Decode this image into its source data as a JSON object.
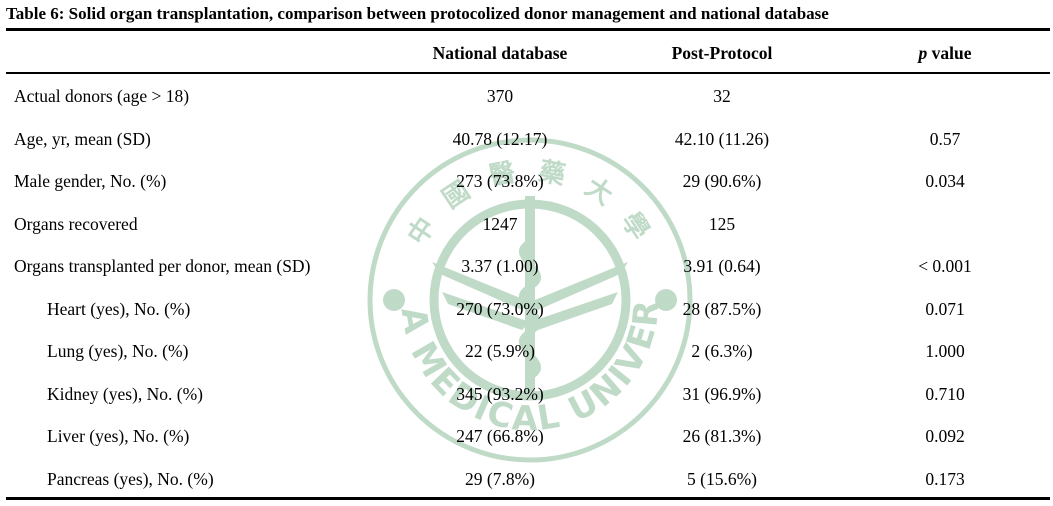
{
  "caption": "Table 6: Solid organ transplantation, comparison between protocolized donor management and national database",
  "columns": {
    "national": "National database",
    "post": "Post-Protocol",
    "p_italic": "p",
    "p_rest": " value"
  },
  "watermark": {
    "top_text": "中 國 醫 藥 大 學",
    "bottom_text": "CHINA MEDICAL UNIVERSITY"
  },
  "rows": [
    {
      "label": "Actual donors (age > 18)",
      "national": "370",
      "post": "32",
      "p": ""
    },
    {
      "label": "Age, yr, mean (SD)",
      "national": "40.78 (12.17)",
      "post": "42.10 (11.26)",
      "p": "0.57"
    },
    {
      "label": "Male gender, No. (%)",
      "national": "273 (73.8%)",
      "post": "29 (90.6%)",
      "p": "0.034"
    },
    {
      "label": "Organs recovered",
      "national": "1247",
      "post": "125",
      "p": ""
    },
    {
      "label": "Organs transplanted per donor, mean (SD)",
      "national": "3.37 (1.00)",
      "post": "3.91 (0.64)",
      "p": "< 0.001"
    },
    {
      "label": "Heart (yes), No. (%)",
      "national": "270 (73.0%)",
      "post": "28 (87.5%)",
      "p": "0.071"
    },
    {
      "label": "Lung (yes), No. (%)",
      "national": "22 (5.9%)",
      "post": "2 (6.3%)",
      "p": "1.000"
    },
    {
      "label": "Kidney (yes), No. (%)",
      "national": "345 (93.2%)",
      "post": "31 (96.9%)",
      "p": "0.710"
    },
    {
      "label": "Liver (yes), No. (%)",
      "national": "247 (66.8%)",
      "post": "26 (81.3%)",
      "p": "0.092"
    },
    {
      "label": "Pancreas (yes), No. (%)",
      "national": "29 (7.8%)",
      "post": "5 (15.6%)",
      "p": "0.173"
    }
  ]
}
